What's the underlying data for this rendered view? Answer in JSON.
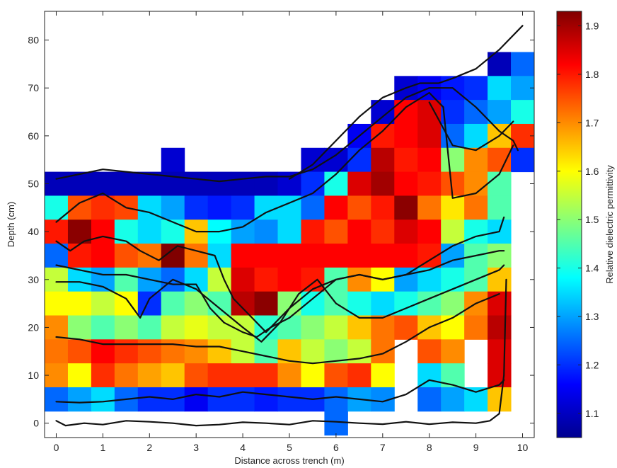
{
  "chart_data": {
    "type": "heatmap",
    "title": "",
    "xlabel": "Distance across trench (m)",
    "ylabel": "Depth (cm)",
    "colorbar_label": "Relative dielectric permittivity",
    "xlim": [
      -0.25,
      10.25
    ],
    "ylim": [
      -3,
      86
    ],
    "clim": [
      1.05,
      1.93
    ],
    "x_ticks": [
      0,
      1,
      2,
      3,
      4,
      5,
      6,
      7,
      8,
      9,
      10
    ],
    "y_ticks": [
      0,
      10,
      20,
      30,
      40,
      50,
      60,
      70,
      80
    ],
    "colorbar_ticks": [
      1.1,
      1.2,
      1.3,
      1.4,
      1.5,
      1.6,
      1.7,
      1.8,
      1.9
    ],
    "colormap": "jet",
    "grid": false,
    "cell_width_m": 0.5,
    "cell_height_cm": 5,
    "x_centers": [
      0,
      0.5,
      1,
      1.5,
      2,
      2.5,
      3,
      3.5,
      4,
      4.5,
      5,
      5.5,
      6,
      6.5,
      7,
      7.5,
      8,
      8.5,
      9,
      9.5,
      10
    ],
    "y_centers": [
      75,
      70,
      65,
      60,
      55,
      50,
      45,
      40,
      35,
      30,
      25,
      20,
      15,
      10,
      5,
      0
    ],
    "permittivity_grid": [
      [
        null,
        null,
        null,
        null,
        null,
        null,
        null,
        null,
        null,
        null,
        null,
        null,
        null,
        null,
        null,
        null,
        null,
        null,
        null,
        1.1,
        1.25
      ],
      [
        null,
        null,
        null,
        null,
        null,
        null,
        null,
        null,
        null,
        null,
        null,
        null,
        null,
        null,
        null,
        1.12,
        1.15,
        1.18,
        1.2,
        1.35,
        1.3
      ],
      [
        null,
        null,
        null,
        null,
        null,
        null,
        null,
        null,
        null,
        null,
        null,
        null,
        null,
        null,
        1.12,
        1.82,
        1.85,
        1.2,
        1.25,
        1.3,
        1.4
      ],
      [
        null,
        null,
        null,
        null,
        null,
        null,
        null,
        null,
        null,
        null,
        null,
        null,
        null,
        1.15,
        1.8,
        1.82,
        1.85,
        1.25,
        1.35,
        1.65,
        1.78
      ],
      [
        null,
        null,
        null,
        null,
        null,
        1.12,
        null,
        null,
        null,
        null,
        null,
        1.12,
        1.12,
        1.2,
        1.88,
        1.8,
        1.82,
        1.5,
        1.7,
        1.75,
        1.2
      ],
      [
        1.1,
        1.1,
        1.1,
        1.1,
        1.1,
        1.1,
        1.1,
        1.1,
        1.1,
        1.1,
        1.12,
        1.2,
        1.4,
        1.85,
        1.9,
        1.82,
        1.8,
        1.75,
        1.7,
        1.45,
        null
      ],
      [
        1.4,
        1.75,
        1.78,
        1.76,
        1.35,
        1.3,
        1.2,
        1.18,
        1.2,
        1.35,
        1.35,
        1.25,
        1.82,
        1.75,
        1.8,
        1.92,
        1.72,
        1.62,
        1.72,
        1.45,
        null
      ],
      [
        1.8,
        1.92,
        1.82,
        1.4,
        1.35,
        1.4,
        1.65,
        1.38,
        1.3,
        1.28,
        1.35,
        1.8,
        1.75,
        1.82,
        1.78,
        1.85,
        1.82,
        1.55,
        1.4,
        1.35,
        null
      ],
      [
        1.25,
        1.8,
        1.82,
        1.75,
        1.72,
        1.93,
        1.72,
        1.35,
        1.82,
        1.82,
        1.82,
        1.82,
        1.82,
        1.82,
        1.82,
        1.82,
        1.8,
        1.3,
        1.45,
        1.5,
        null
      ],
      [
        1.55,
        1.35,
        1.3,
        1.45,
        1.3,
        1.25,
        1.35,
        1.55,
        1.85,
        1.8,
        1.82,
        1.8,
        1.45,
        1.7,
        1.6,
        1.3,
        1.35,
        1.4,
        1.45,
        1.65,
        null
      ],
      [
        1.6,
        1.6,
        1.55,
        1.6,
        1.2,
        1.45,
        1.5,
        1.45,
        1.88,
        1.92,
        1.5,
        1.4,
        1.45,
        1.4,
        1.35,
        1.4,
        1.45,
        1.5,
        1.7,
        1.85,
        null
      ],
      [
        1.7,
        1.5,
        1.45,
        1.5,
        1.45,
        1.55,
        1.58,
        1.55,
        1.55,
        1.42,
        1.45,
        1.5,
        1.55,
        1.65,
        1.72,
        1.75,
        1.65,
        1.6,
        1.72,
        1.88,
        null
      ],
      [
        1.72,
        1.75,
        1.82,
        1.78,
        1.75,
        1.72,
        1.7,
        1.65,
        1.55,
        1.45,
        1.65,
        1.55,
        1.5,
        1.55,
        1.72,
        null,
        1.75,
        1.7,
        null,
        1.85,
        null
      ],
      [
        1.7,
        1.6,
        1.78,
        1.72,
        1.68,
        1.65,
        1.75,
        1.78,
        1.78,
        1.78,
        1.7,
        1.6,
        1.75,
        1.78,
        1.6,
        null,
        1.35,
        1.45,
        null,
        1.85,
        null
      ],
      [
        1.25,
        1.3,
        1.35,
        1.25,
        1.2,
        1.2,
        1.15,
        1.2,
        1.2,
        1.18,
        1.2,
        1.2,
        1.25,
        1.3,
        1.28,
        null,
        1.25,
        1.3,
        1.35,
        1.65,
        null
      ],
      [
        null,
        null,
        null,
        null,
        null,
        null,
        null,
        null,
        null,
        null,
        null,
        null,
        1.25,
        null,
        null,
        null,
        null,
        null,
        null,
        null,
        null
      ]
    ],
    "interface_lines": [
      {
        "x": [
          0,
          0.2,
          0.6,
          1.0,
          1.5,
          2.0,
          2.5,
          3.0,
          3.5,
          4.0,
          4.5,
          5.0,
          5.5,
          6.0,
          6.5,
          7.0,
          7.5,
          8.0,
          8.5,
          9.0,
          9.3,
          9.5,
          9.6,
          9.65
        ],
        "y": [
          0.5,
          -0.5,
          0,
          -0.3,
          0.5,
          0.3,
          0,
          -0.5,
          -0.3,
          0.2,
          0,
          -0.3,
          0.5,
          0.3,
          0,
          -0.2,
          0.3,
          -0.2,
          0.2,
          0,
          0.5,
          2,
          10,
          30
        ]
      },
      {
        "x": [
          0,
          0.5,
          1.0,
          1.5,
          2.0,
          2.5,
          3.0,
          3.5,
          4.0,
          4.5,
          5.0,
          5.5,
          6.0,
          6.5,
          7.0,
          7.5,
          8.0,
          8.5,
          9.0,
          9.5,
          9.6
        ],
        "y": [
          4.5,
          4.3,
          4.5,
          5,
          5.5,
          5,
          6,
          5.5,
          6.5,
          6,
          5.5,
          5,
          5.5,
          5,
          4.5,
          6,
          9,
          8,
          6.5,
          8,
          9
        ]
      },
      {
        "x": [
          0,
          0.5,
          1.0,
          1.5,
          2.0,
          2.5,
          3.0,
          3.5,
          4.0,
          4.5,
          5.0,
          5.5,
          6.0,
          6.5,
          7.0,
          7.5,
          8.0,
          8.5,
          9.0,
          9.5
        ],
        "y": [
          18,
          17.5,
          16.5,
          16.5,
          16.5,
          16.5,
          16,
          16,
          15,
          14,
          13,
          12.5,
          13,
          13.5,
          14.5,
          17,
          20,
          22,
          25,
          27
        ]
      },
      {
        "x": [
          0,
          0.5,
          1.0,
          1.5,
          1.8,
          2.0,
          2.5,
          3.0,
          3.5,
          4.0,
          4.4,
          4.8,
          5.2,
          5.6,
          6.0,
          6.5,
          7.0,
          7.5,
          8.0,
          8.5,
          9.0,
          9.5,
          9.6
        ],
        "y": [
          29.5,
          29.5,
          28.5,
          26,
          22,
          26,
          30,
          28,
          24,
          20,
          17,
          21,
          27,
          30,
          25,
          22,
          22,
          24,
          26,
          28,
          30,
          32,
          33
        ]
      },
      {
        "x": [
          0,
          0.5,
          1.0,
          1.5,
          2.0,
          2.5,
          3.0,
          3.3,
          3.6,
          4.0,
          4.3,
          4.6,
          5.0,
          5.5,
          6.0,
          6.5,
          7.0,
          7.5,
          8.0,
          8.5,
          9.0,
          9.5,
          9.6
        ],
        "y": [
          33,
          32,
          31,
          31,
          30,
          29,
          29,
          24,
          21,
          19,
          18,
          20,
          22,
          26,
          30,
          31,
          30,
          31,
          32,
          34,
          35,
          36,
          36
        ]
      },
      {
        "x": [
          0,
          0.3,
          0.6,
          1.0,
          1.5,
          1.8,
          2.2,
          2.6,
          3.0,
          3.4,
          3.6,
          3.8,
          4.2,
          4.5,
          5.0,
          5.5,
          6.0,
          6.5,
          7.0,
          7.5,
          8.0,
          8.5,
          9.0,
          9.5,
          9.6
        ],
        "y": [
          38,
          36,
          38,
          39,
          38,
          36,
          34,
          37,
          36,
          35,
          30,
          26,
          22,
          19,
          24,
          28,
          30,
          31,
          30,
          31,
          34,
          37,
          39,
          40,
          43
        ]
      },
      {
        "x": [
          0,
          0.5,
          1.0,
          1.5,
          2.0,
          2.5,
          3.0,
          3.5,
          4.0,
          4.5,
          5.0,
          5.5,
          6.0,
          6.5,
          7.0,
          7.5,
          8.0,
          8.3
        ],
        "y": [
          42,
          46,
          48,
          45,
          44,
          42,
          40,
          40,
          41,
          44,
          46,
          48,
          52,
          57,
          61,
          66,
          69,
          66
        ]
      },
      {
        "x": [
          8.3,
          8.5,
          9.0,
          9.5,
          9.8
        ],
        "y": [
          66,
          47,
          48,
          52,
          58
        ]
      },
      {
        "x": [
          0,
          0.5,
          1.0,
          1.5,
          2.0,
          2.5,
          3.0,
          3.5,
          4.0,
          4.5,
          5.0,
          5.5,
          6.0,
          6.5,
          7.0,
          7.5,
          8.0,
          8.5,
          9.0,
          9.5,
          9.8,
          9.9
        ],
        "y": [
          51,
          52,
          53,
          52.5,
          52,
          51.5,
          51,
          50.5,
          51,
          51.5,
          51.5,
          53,
          56,
          60,
          64,
          68,
          70,
          70,
          66,
          61,
          59,
          57
        ]
      },
      {
        "x": [
          8.0,
          8.5,
          9.0,
          9.5,
          9.8
        ],
        "y": [
          67,
          58,
          57,
          60,
          63
        ]
      },
      {
        "x": [
          5.0,
          5.5,
          6.0,
          6.5,
          7.0,
          7.5,
          7.8,
          8.2,
          8.5,
          9.0,
          9.5,
          10.0
        ],
        "y": [
          51,
          54,
          59,
          64,
          68,
          70,
          71,
          71,
          72,
          74,
          78,
          83
        ]
      }
    ]
  }
}
